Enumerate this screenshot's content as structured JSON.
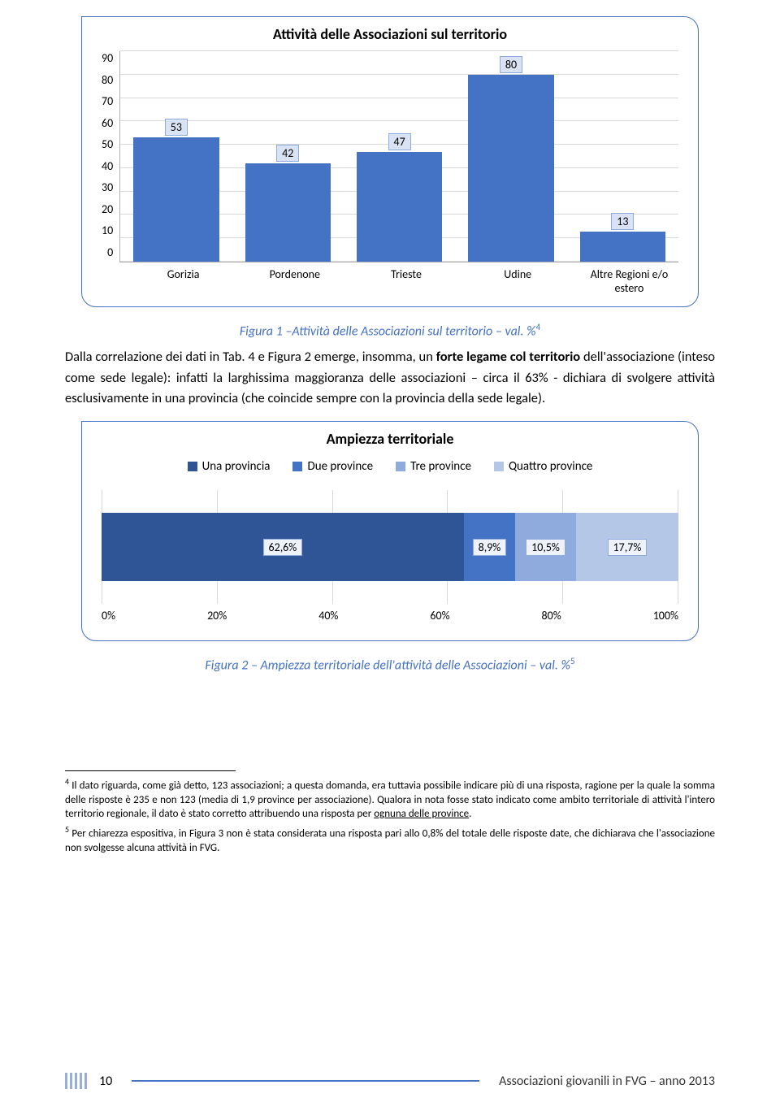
{
  "chart1": {
    "type": "bar",
    "title": "Attività delle Associazioni sul territorio",
    "categories": [
      "Gorizia",
      "Pordenone",
      "Trieste",
      "Udine",
      "Altre Regioni e/o estero"
    ],
    "values": [
      53,
      42,
      47,
      80,
      13
    ],
    "ymax": 90,
    "ytick_step": 10,
    "yticks": [
      "90",
      "80",
      "70",
      "60",
      "50",
      "40",
      "30",
      "20",
      "10",
      "0"
    ],
    "bar_color": "#4472c4",
    "label_bg": "#dae3f3",
    "label_border": "#8faadc",
    "grid_color": "#d9d9d9"
  },
  "caption1": {
    "text": "Figura 1 –Attività delle Associazioni sul territorio – val.  %",
    "sup": "4"
  },
  "para1_a": "Dalla correlazione dei dati in Tab. 4 e Figura 2 emerge, insomma, un ",
  "para1_b": "forte legame col territorio",
  "para1_c": " dell'associazione (inteso come sede legale): infatti la larghissima maggioranza delle associazioni – circa il 63% - dichiara di svolgere attività esclusivamente in una provincia (che coincide sempre con la provincia della sede legale).",
  "chart2": {
    "type": "stacked-hbar",
    "title": "Ampiezza territoriale",
    "legend": [
      {
        "label": "Una provincia",
        "color": "#2f5597"
      },
      {
        "label": "Due province",
        "color": "#4472c4"
      },
      {
        "label": "Tre province",
        "color": "#8faadc"
      },
      {
        "label": "Quattro province",
        "color": "#b4c7e7"
      }
    ],
    "segments": [
      {
        "label": "62,6%",
        "value": 62.6,
        "color": "#2f5597"
      },
      {
        "label": "8,9%",
        "value": 8.9,
        "color": "#4472c4"
      },
      {
        "label": "10,5%",
        "value": 10.5,
        "color": "#8faadc"
      },
      {
        "label": "17,7%",
        "value": 17.7,
        "color": "#b4c7e7"
      }
    ],
    "xticks": [
      "0%",
      "20%",
      "40%",
      "60%",
      "80%",
      "100%"
    ],
    "label_bg": "#eef3fb",
    "label_border": "#8faadc",
    "grid_color": "#d9d9d9"
  },
  "caption2": {
    "text": "Figura 2 – Ampiezza territoriale dell'attività delle Associazioni – val.  %",
    "sup": "5"
  },
  "footnote4": {
    "sup": "4",
    "text": " Il dato riguarda, come già detto, 123 associazioni; a questa domanda, era tuttavia possibile indicare più di una risposta, ragione per la quale la somma delle risposte è 235 e non 123 (media di 1,9 province per associazione). Qualora in nota fosse stato indicato come ambito territoriale di attività l'intero territorio regionale, il dato è stato corretto attribuendo una risposta per ",
    "underlined": "ognuna delle province",
    "tail": "."
  },
  "footnote5": {
    "sup": "5",
    "text": " Per chiarezza espositiva, in Figura 3 non è stata considerata una risposta pari allo 0,8% del totale delle risposte date, che dichiarava che l'associazione non svolgesse alcuna attività in FVG."
  },
  "footer": {
    "page": "10",
    "right": "Associazioni giovanili in FVG  – anno 2013"
  }
}
